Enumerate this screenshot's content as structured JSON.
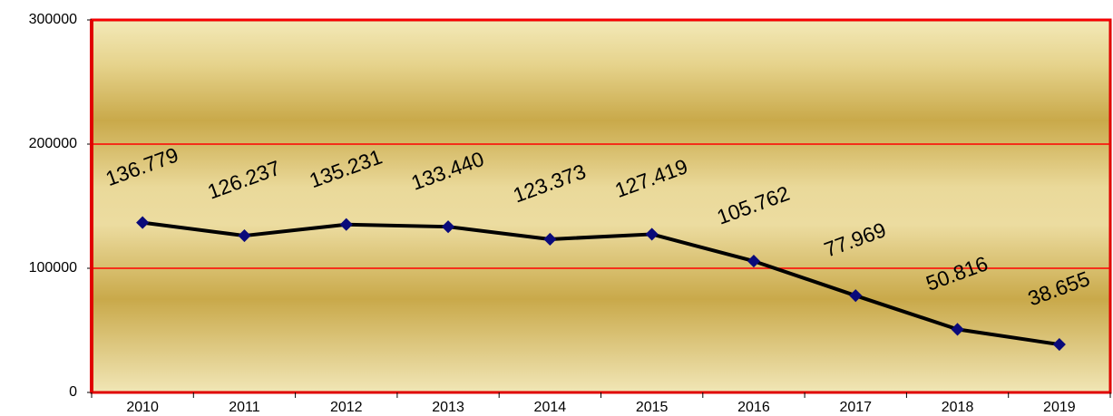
{
  "chart_data": {
    "type": "line",
    "categories": [
      "2010",
      "2011",
      "2012",
      "2013",
      "2014",
      "2015",
      "2016",
      "2017",
      "2018",
      "2019"
    ],
    "values": [
      136779,
      126237,
      135231,
      133440,
      123373,
      127419,
      105762,
      77969,
      50816,
      38655
    ],
    "value_labels": [
      "136.779",
      "126.237",
      "135.231",
      "133.440",
      "123.373",
      "127.419",
      "105.762",
      "77.969",
      "50.816",
      "38.655"
    ],
    "color": "#000000",
    "marker_color": "#0a0a7a",
    "grid_color": "#ff0000",
    "ylim": [
      0,
      300000
    ],
    "yticks": [
      0,
      100000,
      200000,
      300000
    ],
    "grid": true
  }
}
